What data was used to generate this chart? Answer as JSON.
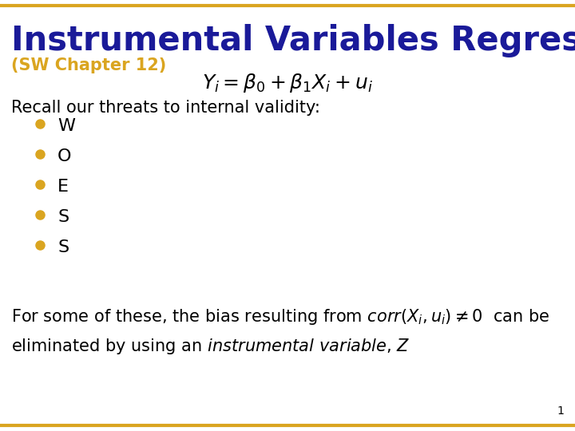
{
  "title": "Instrumental Variables Regression",
  "subtitle": "(SW Chapter 12)",
  "title_color": "#1A1A99",
  "subtitle_color": "#DAA520",
  "bg_color": "#FFFFFF",
  "border_color": "#DAA520",
  "bullet_color": "#DAA520",
  "bullet_items": [
    "W",
    "O",
    "E",
    "S",
    "S"
  ],
  "recall_text": "Recall our threats to internal validity:",
  "page_number": "1",
  "title_fontsize": 30,
  "subtitle_fontsize": 15,
  "body_fontsize": 15,
  "bullet_fontsize": 16,
  "equation_fontsize": 18
}
